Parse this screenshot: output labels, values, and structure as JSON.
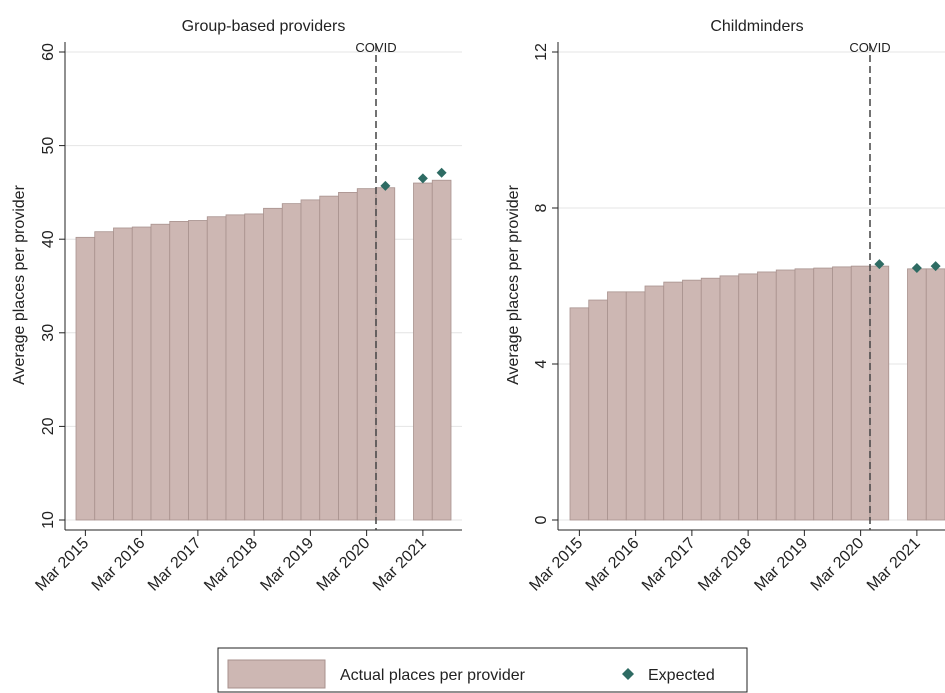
{
  "chart_data": [
    {
      "type": "bar",
      "title": "Group-based providers",
      "ylabel": "Average places per provider",
      "annotation": "COVID",
      "categories": [
        "Mar 2015",
        null,
        null,
        "Mar 2016",
        null,
        null,
        "Mar 2017",
        null,
        null,
        "Mar 2018",
        null,
        null,
        "Mar 2019",
        null,
        null,
        "Mar 2020",
        null,
        null,
        "Mar 2021",
        null
      ],
      "series": [
        {
          "name": "Actual places per provider",
          "color": "#cdb7b3",
          "values": [
            40.2,
            40.8,
            41.2,
            41.3,
            41.6,
            41.9,
            42.0,
            42.4,
            42.6,
            42.7,
            43.3,
            43.8,
            44.2,
            44.6,
            45.0,
            45.4,
            45.5,
            null,
            46.0,
            46.3
          ]
        },
        {
          "name": "Expected",
          "color": "#2e6b63",
          "values": [
            null,
            null,
            null,
            null,
            null,
            null,
            null,
            null,
            null,
            null,
            null,
            null,
            null,
            null,
            null,
            null,
            45.7,
            null,
            46.5,
            47.1
          ]
        }
      ],
      "ylim": [
        10,
        60
      ],
      "yticks": [
        10,
        20,
        30,
        40,
        50,
        60
      ],
      "grid": true
    },
    {
      "type": "bar",
      "title": "Childminders",
      "ylabel": "Average places per provider",
      "annotation": "COVID",
      "categories": [
        "Mar 2015",
        null,
        null,
        "Mar 2016",
        null,
        null,
        "Mar 2017",
        null,
        null,
        "Mar 2018",
        null,
        null,
        "Mar 2019",
        null,
        null,
        "Mar 2020",
        null,
        null,
        "Mar 2021",
        null
      ],
      "series": [
        {
          "color": "#cdb7b3",
          "values": [
            5.44,
            5.64,
            5.85,
            5.85,
            6.0,
            6.1,
            6.15,
            6.2,
            6.26,
            6.31,
            6.36,
            6.41,
            6.44,
            6.46,
            6.49,
            6.51,
            6.51,
            null,
            6.44,
            6.44
          ]
        },
        {
          "color": "#2e6b63",
          "values": [
            null,
            null,
            null,
            null,
            null,
            null,
            null,
            null,
            null,
            null,
            null,
            null,
            null,
            null,
            null,
            null,
            6.56,
            null,
            6.46,
            6.51
          ]
        }
      ],
      "ylim": [
        0,
        12
      ],
      "yticks": [
        0,
        4,
        8,
        12
      ],
      "grid": true
    }
  ]
}
